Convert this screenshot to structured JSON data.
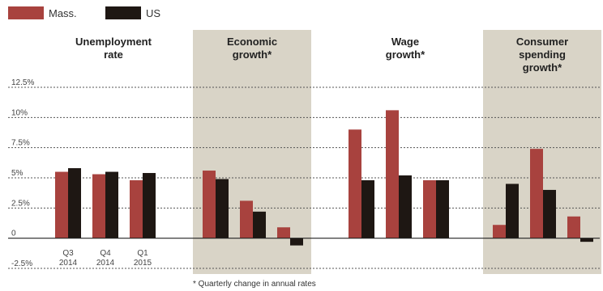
{
  "legend": [
    {
      "label": "Mass.",
      "color": "#a8423e"
    },
    {
      "label": "US",
      "color": "#1e1713"
    }
  ],
  "footnote": "* Quarterly change in annual rates",
  "colors": {
    "panel_shade": "#d9d4c7",
    "grid": "#555555",
    "zero_line": "#222222"
  },
  "chart_data": {
    "type": "bar",
    "ylim": [
      -2.5,
      12.5
    ],
    "yticks": [
      {
        "value": 12.5,
        "label": "12.5%"
      },
      {
        "value": 10,
        "label": "10%"
      },
      {
        "value": 7.5,
        "label": "7.5%"
      },
      {
        "value": 5,
        "label": "5%"
      },
      {
        "value": 2.5,
        "label": "2.5%"
      },
      {
        "value": 0,
        "label": "0"
      },
      {
        "value": -2.5,
        "label": "-2.5%"
      }
    ],
    "grid": true,
    "legend_position": "top-left",
    "categories": [
      {
        "lines": [
          "Q3",
          "2014"
        ]
      },
      {
        "lines": [
          "Q4",
          "2014"
        ]
      },
      {
        "lines": [
          "Q1",
          "2015"
        ]
      }
    ],
    "panels": [
      {
        "title_lines": [
          "Unemployment",
          "rate"
        ],
        "shaded": false,
        "series": [
          {
            "name": "Mass.",
            "values": [
              5.5,
              5.3,
              4.8
            ]
          },
          {
            "name": "US",
            "values": [
              5.8,
              5.5,
              5.4
            ]
          }
        ]
      },
      {
        "title_lines": [
          "Economic",
          "growth*"
        ],
        "shaded": true,
        "series": [
          {
            "name": "Mass.",
            "values": [
              5.6,
              3.1,
              0.9
            ]
          },
          {
            "name": "US",
            "values": [
              4.9,
              2.2,
              -0.6
            ]
          }
        ]
      },
      {
        "title_lines": [
          "Wage",
          "growth*"
        ],
        "shaded": false,
        "series": [
          {
            "name": "Mass.",
            "values": [
              9.0,
              10.6,
              4.8
            ]
          },
          {
            "name": "US",
            "values": [
              4.8,
              5.2,
              4.8
            ]
          }
        ]
      },
      {
        "title_lines": [
          "Consumer",
          "spending",
          "growth*"
        ],
        "shaded": true,
        "series": [
          {
            "name": "Mass.",
            "values": [
              1.1,
              7.4,
              1.8
            ]
          },
          {
            "name": "US",
            "values": [
              4.5,
              4.0,
              -0.3
            ]
          }
        ]
      }
    ]
  }
}
